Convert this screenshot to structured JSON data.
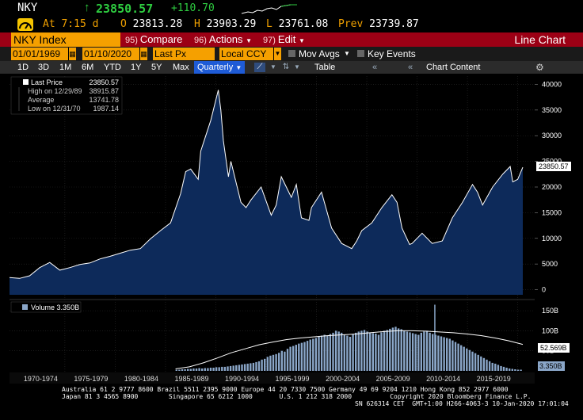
{
  "quote": {
    "ticker": "NKY",
    "last": "23850.57",
    "change": "+110.70",
    "at_label": "At",
    "at_time": "7:15 d",
    "open_label": "O",
    "open": "23813.28",
    "high_label": "H",
    "high": "23903.29",
    "low_label": "L",
    "low": "23761.08",
    "prev_label": "Prev",
    "prev": "23739.87",
    "positive_color": "#2ecc40"
  },
  "header": {
    "security": "NKY Index",
    "compare_num": "95)",
    "compare_label": "Compare",
    "actions_num": "96)",
    "actions_label": "Actions",
    "edit_num": "97)",
    "edit_label": "Edit",
    "title": "Line Chart"
  },
  "inputs": {
    "start_date": "01/01/1969",
    "end_date": "01/10/2020",
    "field": "Last Px",
    "currency": "Local CCY",
    "mov_avgs_label": "Mov Avgs",
    "key_events_label": "Key Events"
  },
  "toolbar": {
    "periods": [
      "1D",
      "3D",
      "1M",
      "6M",
      "YTD",
      "1Y",
      "5Y",
      "Max"
    ],
    "frequency": "Quarterly",
    "table_label": "Table",
    "chart_content_label": "Chart Content"
  },
  "legend": {
    "last_price_label": "Last Price",
    "last_price_value": "23850.57",
    "high_label": "High on 12/29/89",
    "high_value": "38915.87",
    "average_label": "Average",
    "average_value": "13741.78",
    "low_label": "Low on 12/31/70",
    "low_value": "1987.14",
    "volume_label": "Volume",
    "volume_value": "3.350B"
  },
  "chart_data": [
    {
      "type": "area",
      "x": [
        1969,
        1970,
        1971,
        1972,
        1973,
        1974,
        1975,
        1976,
        1977,
        1978,
        1979,
        1980,
        1981,
        1982,
        1983,
        1984,
        1985,
        1986,
        1986.5,
        1987,
        1987.75,
        1988,
        1989,
        1989.75,
        1990,
        1990.25,
        1990.75,
        1991,
        1992,
        1992.5,
        1993,
        1994,
        1995,
        1995.5,
        1996,
        1997,
        1997.5,
        1998,
        1998.75,
        1999,
        2000,
        2001,
        2002,
        2003,
        2003.5,
        2004,
        2005,
        2006,
        2007,
        2007.5,
        2008,
        2008.75,
        2009,
        2010,
        2011,
        2012,
        2013,
        2014,
        2015,
        2015.5,
        2016,
        2017,
        2018,
        2018.75,
        2019,
        2019.5,
        2020
      ],
      "values": [
        2358,
        2200,
        2700,
        4300,
        5300,
        3800,
        4300,
        4900,
        5200,
        6000,
        6500,
        7100,
        7700,
        8000,
        9900,
        11500,
        13000,
        18700,
        23000,
        23500,
        21500,
        27000,
        33000,
        38915,
        35000,
        29000,
        22000,
        25000,
        17000,
        16000,
        17500,
        20000,
        14500,
        16500,
        22000,
        18000,
        20500,
        14000,
        13500,
        16000,
        19000,
        12000,
        9000,
        8000,
        9500,
        11500,
        13000,
        16000,
        18500,
        17000,
        12000,
        8800,
        9000,
        11000,
        9000,
        9500,
        14000,
        17000,
        20500,
        19000,
        16500,
        20000,
        22500,
        24000,
        21000,
        21500,
        23850
      ],
      "xlabel": "",
      "ylabel": "",
      "ylim": [
        -1000,
        41000
      ],
      "y_ticks": [
        0,
        5000,
        10000,
        15000,
        20000,
        25000,
        30000,
        35000,
        40000
      ],
      "x_ticks": [
        "1970-1974",
        "1975-1979",
        "1980-1984",
        "1985-1989",
        "1990-1994",
        "1995-1999",
        "2000-2004",
        "2005-2009",
        "2010-2014",
        "2015-2019"
      ],
      "last_value_label": "23850.57",
      "grid": true,
      "color": "#ffffff",
      "fill": "#0d2a5a"
    },
    {
      "type": "bar",
      "x_start": 1985.5,
      "x_end": 2020,
      "values": [
        3,
        3,
        4,
        4,
        5,
        5,
        6,
        6,
        7,
        6,
        7,
        7,
        8,
        8,
        9,
        9,
        10,
        10,
        11,
        12,
        13,
        14,
        15,
        16,
        17,
        18,
        19,
        20,
        22,
        24,
        28,
        30,
        35,
        38,
        40,
        42,
        45,
        50,
        48,
        55,
        60,
        62,
        65,
        68,
        70,
        72,
        75,
        78,
        80,
        82,
        85,
        88,
        90,
        88,
        92,
        95,
        100,
        98,
        95,
        90,
        88,
        85,
        92,
        95,
        98,
        100,
        102,
        98,
        95,
        94,
        93,
        90,
        96,
        100,
        102,
        105,
        108,
        110,
        106,
        104,
        100,
        98,
        96,
        94,
        92,
        90,
        95,
        98,
        100,
        95,
        92,
        90,
        88,
        86,
        84,
        82,
        80,
        76,
        72,
        68,
        64,
        60,
        56,
        52,
        48,
        44,
        40,
        36,
        32,
        28,
        24,
        20,
        18,
        15,
        12,
        10,
        8,
        6,
        5,
        4,
        3,
        3
      ],
      "moving_average": [
        5,
        10,
        20,
        32,
        45,
        55,
        65,
        72,
        78,
        82,
        85,
        88,
        90,
        92,
        95,
        98,
        100,
        100,
        99,
        97,
        95,
        92,
        88,
        82,
        75,
        66
      ],
      "ylim": [
        0,
        170
      ],
      "y_ticks": [
        50,
        100,
        150
      ],
      "y_tick_labels": [
        "50B",
        "100B",
        "150B"
      ],
      "ma_value_label": "52.569B",
      "last_value_label": "3.350B",
      "spike_value": 165
    }
  ],
  "footer": {
    "line1": "Australia 61 2 9777 8600 Brazil 5511 2395 9000 Europe 44 20 7330 7500 Germany 49 69 9204 1210 Hong Kong 852 2977 6000",
    "line2": "Japan 81 3 4565 8900        Singapore 65 6212 1000       U.S. 1 212 318 2000          Copyright 2020 Bloomberg Finance L.P.",
    "line3": "SN 626314 CET  GMT+1:00 H266-4063-3 10-Jan-2020 17:01:04"
  }
}
